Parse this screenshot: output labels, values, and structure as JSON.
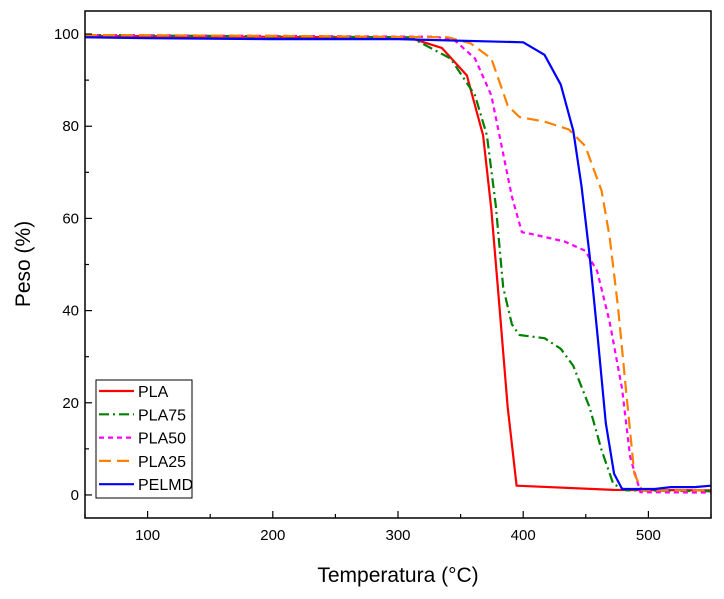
{
  "chart_data": {
    "type": "line",
    "title": "",
    "xlabel": "Temperatura (°C)",
    "ylabel": "Peso (%)",
    "xlim": [
      50,
      550
    ],
    "ylim": [
      -5,
      105
    ],
    "xticks": [
      100,
      200,
      300,
      400,
      500
    ],
    "yticks": [
      0,
      20,
      40,
      60,
      80,
      100
    ],
    "grid": false,
    "legend_position": "bottom-left",
    "series": [
      {
        "name": "PLA",
        "color": "#ff0000",
        "dash": "",
        "x": [
          50,
          200,
          309,
          335,
          355,
          368,
          374.5,
          381,
          387.6,
          394.7,
          472,
          550
        ],
        "y": [
          99.6,
          99.4,
          99.2,
          97,
          91,
          78,
          62,
          41,
          19,
          2,
          1.1,
          1
        ]
      },
      {
        "name": "PLA75",
        "color": "#008000",
        "dash": "10,4,2,4",
        "x": [
          50,
          200,
          310,
          342,
          361.5,
          371,
          378,
          384,
          391,
          397,
          417,
          430,
          440,
          453,
          462.6,
          472,
          482,
          550
        ],
        "y": [
          99.8,
          99.5,
          99.3,
          94.7,
          86.7,
          78,
          63,
          45,
          37,
          34.7,
          34,
          31.7,
          28,
          19,
          9.7,
          2.4,
          1,
          0.8
        ]
      },
      {
        "name": "PLA50",
        "color": "#ff00ff",
        "dash": "5,4",
        "x": [
          50,
          200,
          330,
          345,
          361.5,
          374.5,
          384,
          391,
          399,
          407,
          433,
          449.5,
          459,
          469,
          479,
          485.4,
          493.6,
          550
        ],
        "y": [
          99.8,
          99.6,
          99.4,
          98.7,
          94.7,
          86.7,
          74,
          64.7,
          57,
          56.6,
          55,
          53,
          48.6,
          37.6,
          23,
          8.3,
          0.6,
          0.5
        ]
      },
      {
        "name": "PLA25",
        "color": "#ff8000",
        "dash": "12,6",
        "x": [
          50,
          200,
          340,
          358,
          374.5,
          387.6,
          397,
          417,
          436.5,
          449.5,
          462.6,
          469,
          475.6,
          482,
          488.7,
          495,
          550
        ],
        "y": [
          99.8,
          99.6,
          99.3,
          98,
          94.7,
          84.5,
          82,
          81,
          79.3,
          75.7,
          66,
          56,
          41,
          23,
          4.6,
          1,
          1
        ]
      },
      {
        "name": "PELMD",
        "color": "#0000ff",
        "dash": "",
        "x": [
          50,
          100,
          200,
          300,
          400,
          417,
          430,
          440,
          446.6,
          453,
          459.6,
          466,
          472.6,
          479,
          505,
          518,
          537,
          550
        ],
        "y": [
          99.3,
          99.1,
          98.9,
          98.9,
          98.2,
          95.5,
          89,
          79,
          67,
          52,
          34,
          15.6,
          4.6,
          1.3,
          1.3,
          1.7,
          1.7,
          2
        ]
      }
    ]
  }
}
